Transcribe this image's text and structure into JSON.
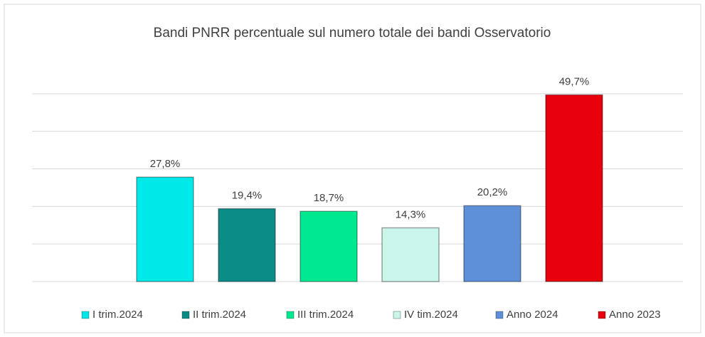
{
  "chart_data": {
    "type": "bar",
    "title": "Bandi PNRR percentuale sul numero totale dei bandi Osservatorio",
    "categories": [
      "I trim.2024",
      "II trim.2024",
      "III trim.2024",
      "IV tim.2024",
      "Anno 2024",
      "Anno 2023"
    ],
    "values": [
      27.8,
      19.4,
      18.7,
      14.3,
      20.2,
      49.7
    ],
    "value_labels": [
      "27,8%",
      "19,4%",
      "18,7%",
      "14,3%",
      "20,2%",
      "49,7%"
    ],
    "colors": [
      "#00e8e8",
      "#0b8c87",
      "#00e890",
      "#c9f5ea",
      "#5e90da",
      "#e8000c"
    ],
    "ylim": [
      0,
      60
    ],
    "yticks": [
      0,
      10,
      20,
      30,
      40,
      50
    ],
    "grid": true,
    "legend": "bottom"
  }
}
